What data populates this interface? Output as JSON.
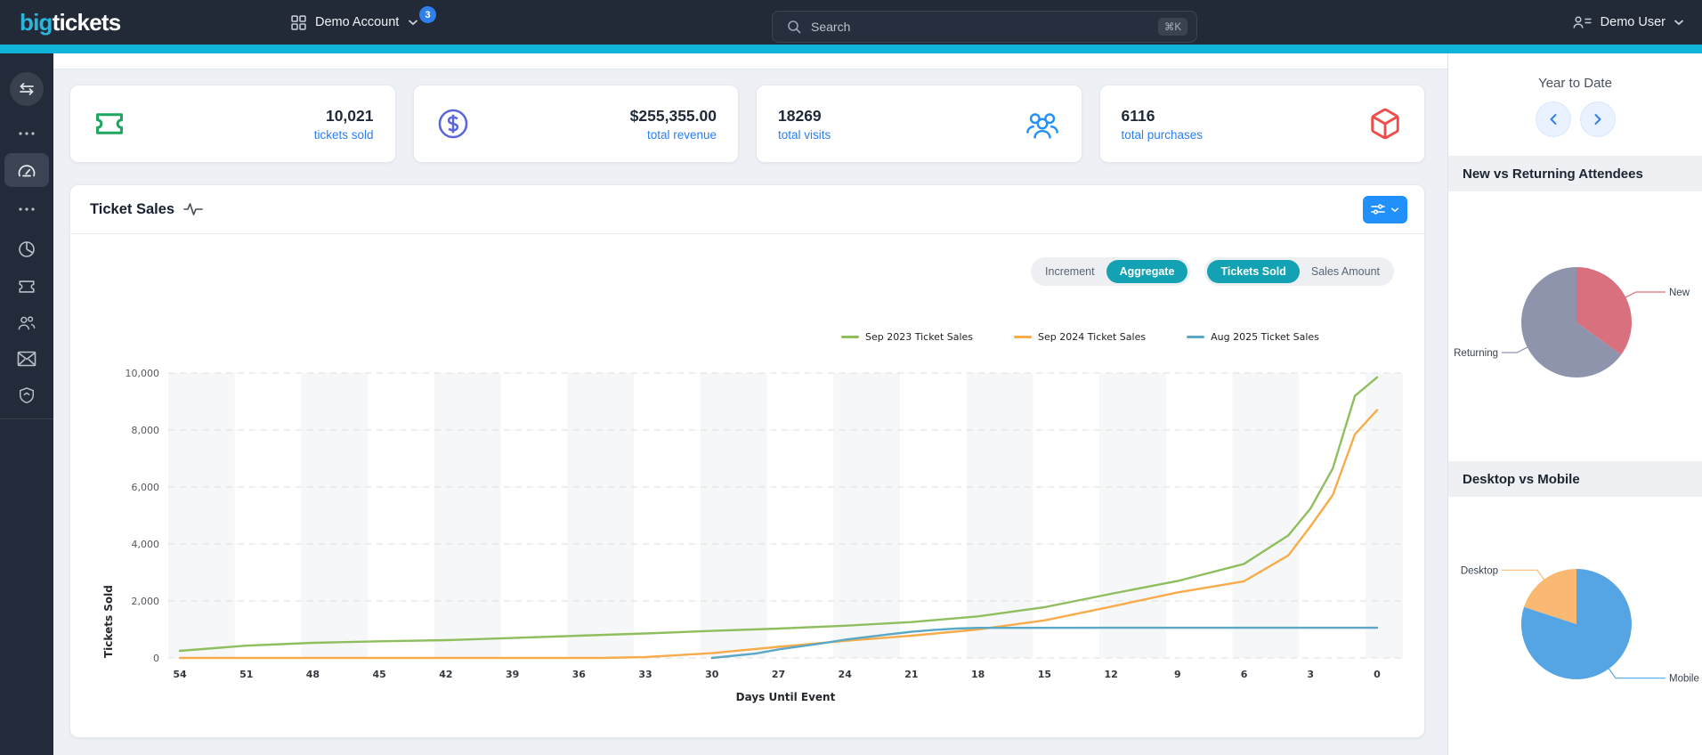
{
  "nav": {
    "logo_part1": "big",
    "logo_part2": "tickets",
    "account_label": "Demo Account",
    "account_badge": "3",
    "search_placeholder": "Search",
    "search_shortcut": "⌘K",
    "user_label": "Demo User"
  },
  "sidebar": {
    "items": [
      "swap",
      "more",
      "dashboard",
      "more",
      "pie-chart",
      "ticket",
      "users",
      "mail",
      "shield"
    ],
    "active_item": "dashboard"
  },
  "stats": [
    {
      "value": "10,021",
      "label": "tickets sold",
      "icon": "ticket",
      "accent": "#1ea55f"
    },
    {
      "value": "$255,355.00",
      "label": "total revenue",
      "icon": "dollar-circle",
      "accent": "#5b67d8"
    },
    {
      "value": "18269",
      "label": "total visits",
      "icon": "people-group",
      "accent": "#2490fc"
    },
    {
      "value": "6116",
      "label": "total purchases",
      "icon": "package",
      "accent": "#ef4b4b"
    }
  ],
  "chart_controls": {
    "mode_options": [
      "Increment",
      "Aggregate"
    ],
    "mode_active": "Aggregate",
    "metric_options": [
      "Tickets Sold",
      "Sales Amount"
    ],
    "metric_active": "Tickets Sold",
    "active_color": "#13a2b3"
  },
  "right_panel": {
    "period_label": "Year to Date"
  },
  "chart_data": [
    {
      "type": "line",
      "title": "Ticket Sales",
      "xlabel": "Days Until Event",
      "ylabel": "Tickets Sold",
      "x_axis_reversed": true,
      "xticks": [
        54,
        51,
        48,
        45,
        42,
        39,
        36,
        33,
        30,
        27,
        24,
        21,
        18,
        15,
        12,
        9,
        6,
        3,
        0
      ],
      "yticks": [
        {
          "value": 0,
          "label": "0"
        },
        {
          "value": 2000,
          "label": "2,000"
        },
        {
          "value": 4000,
          "label": "4,000"
        },
        {
          "value": 6000,
          "label": "6,000"
        },
        {
          "value": 8000,
          "label": "8,000"
        },
        {
          "value": 10000,
          "label": "10,000"
        }
      ],
      "ylim": [
        0,
        10000
      ],
      "grid": "dashed-horizontal",
      "band_shading": "alternating-3-day-columns",
      "legend_position": "top",
      "series": [
        {
          "name": "Sep 2023 Ticket Sales",
          "color": "#8fbe5f",
          "points": [
            [
              54,
              250
            ],
            [
              51,
              430
            ],
            [
              48,
              530
            ],
            [
              45,
              585
            ],
            [
              42,
              625
            ],
            [
              39,
              700
            ],
            [
              36,
              780
            ],
            [
              33,
              860
            ],
            [
              30,
              950
            ],
            [
              27,
              1030
            ],
            [
              24,
              1130
            ],
            [
              21,
              1260
            ],
            [
              18,
              1460
            ],
            [
              15,
              1780
            ],
            [
              12,
              2250
            ],
            [
              9,
              2700
            ],
            [
              6,
              3300
            ],
            [
              4,
              4300
            ],
            [
              3,
              5250
            ],
            [
              2,
              6650
            ],
            [
              1,
              9200
            ],
            [
              0,
              9850
            ]
          ]
        },
        {
          "name": "Sep 2024 Ticket Sales",
          "color": "#f8ab4b",
          "points": [
            [
              54,
              0
            ],
            [
              35,
              0
            ],
            [
              33,
              30
            ],
            [
              30,
              170
            ],
            [
              27,
              390
            ],
            [
              24,
              600
            ],
            [
              21,
              780
            ],
            [
              18,
              1000
            ],
            [
              15,
              1320
            ],
            [
              12,
              1800
            ],
            [
              9,
              2300
            ],
            [
              6,
              2690
            ],
            [
              4,
              3600
            ],
            [
              3,
              4625
            ],
            [
              2,
              5720
            ],
            [
              1,
              7850
            ],
            [
              0,
              8700
            ]
          ]
        },
        {
          "name": "Aug 2025 Ticket Sales",
          "color": "#5aa8c6",
          "points": [
            [
              30,
              0
            ],
            [
              28,
              160
            ],
            [
              27,
              300
            ],
            [
              25,
              520
            ],
            [
              24,
              640
            ],
            [
              22,
              830
            ],
            [
              21,
              920
            ],
            [
              20,
              980
            ],
            [
              19,
              1030
            ],
            [
              18,
              1055
            ],
            [
              12,
              1060
            ],
            [
              6,
              1060
            ],
            [
              0,
              1060
            ]
          ]
        }
      ]
    },
    {
      "type": "pie",
      "title": "New vs Returning Attendees",
      "slices": [
        {
          "label": "New",
          "value": 35,
          "color": "#d9707e"
        },
        {
          "label": "Returning",
          "value": 65,
          "color": "#8e94ac"
        }
      ]
    },
    {
      "type": "pie",
      "title": "Desktop vs Mobile",
      "slices": [
        {
          "label": "Mobile",
          "value": 80,
          "color": "#55a5e5"
        },
        {
          "label": "Desktop",
          "value": 20,
          "color": "#f9b973"
        }
      ]
    }
  ]
}
